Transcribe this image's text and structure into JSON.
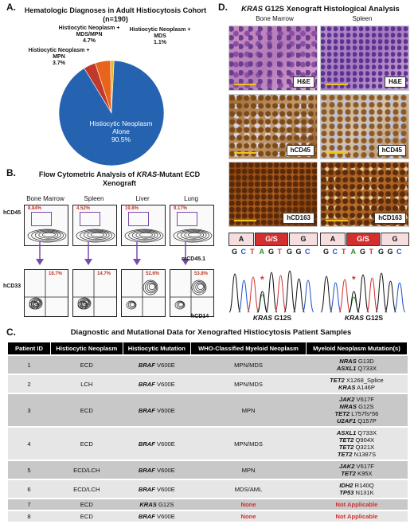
{
  "panel_labels": {
    "a": "A.",
    "b": "B.",
    "c": "C.",
    "d": "D."
  },
  "panel_a": {
    "title": "Hematologic Diagnoses in Adult Histiocytosis Cohort (n=190)",
    "slices": [
      {
        "label": "Histiocytic Neoplasm Alone",
        "pct": "90.5%",
        "value": 90.5,
        "color": "#2563b0"
      },
      {
        "label": "Histiocytic Neoplasm + MPN",
        "pct": "3.7%",
        "value": 3.7,
        "color": "#c0392b"
      },
      {
        "label": "Histiocytic Neoplasm + MDS/MPN",
        "pct": "4.7%",
        "value": 4.7,
        "color": "#e8641a"
      },
      {
        "label": "Histiocytic Neoplasm + MDS",
        "pct": "1.1%",
        "value": 1.1,
        "color": "#f0b429"
      }
    ]
  },
  "chart_data": {
    "type": "pie",
    "title": "Hematologic Diagnoses in Adult Histiocytosis Cohort (n=190)",
    "categories": [
      "Histiocytic Neoplasm Alone",
      "Histiocytic Neoplasm + MPN",
      "Histiocytic Neoplasm + MDS/MPN",
      "Histiocytic Neoplasm + MDS"
    ],
    "values": [
      90.5,
      3.7,
      4.7,
      1.1
    ]
  },
  "panel_b": {
    "title_pre": "Flow Cytometric Analysis of ",
    "title_gene": "KRAS",
    "title_post": "-Mutant ECD Xenograft",
    "tissues": [
      "Bone Marrow",
      "Spleen",
      "Liver",
      "Lung"
    ],
    "top_pcts": [
      "8.84%",
      "4.52%",
      "19.8%",
      "9.17%"
    ],
    "bottom_pcts": [
      "18.7%",
      "14.7%",
      "52.6%",
      "53.8%"
    ],
    "top_y": "hCD45",
    "top_x": "mCD45.1",
    "bottom_y": "hCD33",
    "bottom_x": "hCD14"
  },
  "panel_d": {
    "title_gene": "KRAS",
    "title_rest": " G12S Xenograft Histological Analysis",
    "col_bm": "Bone Marrow",
    "col_sp": "Spleen",
    "stains": [
      "H&E",
      "hCD45",
      "hCD163"
    ],
    "codons": [
      "A",
      "G/S",
      "G"
    ],
    "bases": [
      "G",
      "C",
      "T",
      "A",
      "G",
      "T",
      "G",
      "G",
      "C"
    ],
    "mut_gene": "KRAS",
    "mut_name": " G12S",
    "star": "*"
  },
  "panel_c": {
    "title": "Diagnostic and Mutational Data for Xenografted Histiocytosis Patient Samples",
    "headers": [
      "Patient ID",
      "Histiocytic Neoplasm",
      "Histiocytic Mutation",
      "WHO-Classified Myeloid Neoplasm",
      "Myeloid Neoplasm Mutation(s)"
    ],
    "rows": [
      {
        "id": "1",
        "neoplasm": "ECD",
        "mut_gene": "BRAF",
        "mut_var": "V600E",
        "who": "MPN/MDS",
        "who_red": false,
        "myeloid": [
          [
            "NRAS",
            "G13D"
          ],
          [
            "ASXL1",
            "Q733X"
          ]
        ]
      },
      {
        "id": "2",
        "neoplasm": "LCH",
        "mut_gene": "BRAF",
        "mut_var": "V600E",
        "who": "MPN/MDS",
        "who_red": false,
        "myeloid": [
          [
            "TET2",
            "X1268_Splice"
          ],
          [
            "KRAS",
            "A146P"
          ]
        ]
      },
      {
        "id": "3",
        "neoplasm": "ECD",
        "mut_gene": "BRAF",
        "mut_var": "V600E",
        "who": "MPN",
        "who_red": false,
        "myeloid": [
          [
            "JAK2",
            "V617F"
          ],
          [
            "NRAS",
            "G12S"
          ],
          [
            "TET2",
            "L757fs*56"
          ],
          [
            "U2AF1",
            "Q157P"
          ]
        ]
      },
      {
        "id": "4",
        "neoplasm": "ECD",
        "mut_gene": "BRAF",
        "mut_var": "V600E",
        "who": "MPN/MDS",
        "who_red": false,
        "myeloid": [
          [
            "ASXL1",
            "Q733X"
          ],
          [
            "TET2",
            "Q904X"
          ],
          [
            "TET2",
            "Q321X"
          ],
          [
            "TET2",
            "N1387S"
          ]
        ]
      },
      {
        "id": "5",
        "neoplasm": "ECD/LCH",
        "mut_gene": "BRAF",
        "mut_var": "V600E",
        "who": "MPN",
        "who_red": false,
        "myeloid": [
          [
            "JAK2",
            "V617F"
          ],
          [
            "TET2",
            "K95X"
          ]
        ]
      },
      {
        "id": "6",
        "neoplasm": "ECD/LCH",
        "mut_gene": "BRAF",
        "mut_var": "V600E",
        "who": "MDS/AML",
        "who_red": false,
        "myeloid": [
          [
            "IDH2",
            "R140Q"
          ],
          [
            "TP53",
            "N131K"
          ]
        ]
      },
      {
        "id": "7",
        "neoplasm": "ECD",
        "mut_gene": "KRAS",
        "mut_var": "G12S",
        "who": "None",
        "who_red": true,
        "myeloid_text": "Not Applicable"
      },
      {
        "id": "8",
        "neoplasm": "ECD",
        "mut_gene": "BRAF",
        "mut_var": "V600E",
        "who": "None",
        "who_red": true,
        "myeloid_text": "Not Applicable"
      }
    ]
  }
}
